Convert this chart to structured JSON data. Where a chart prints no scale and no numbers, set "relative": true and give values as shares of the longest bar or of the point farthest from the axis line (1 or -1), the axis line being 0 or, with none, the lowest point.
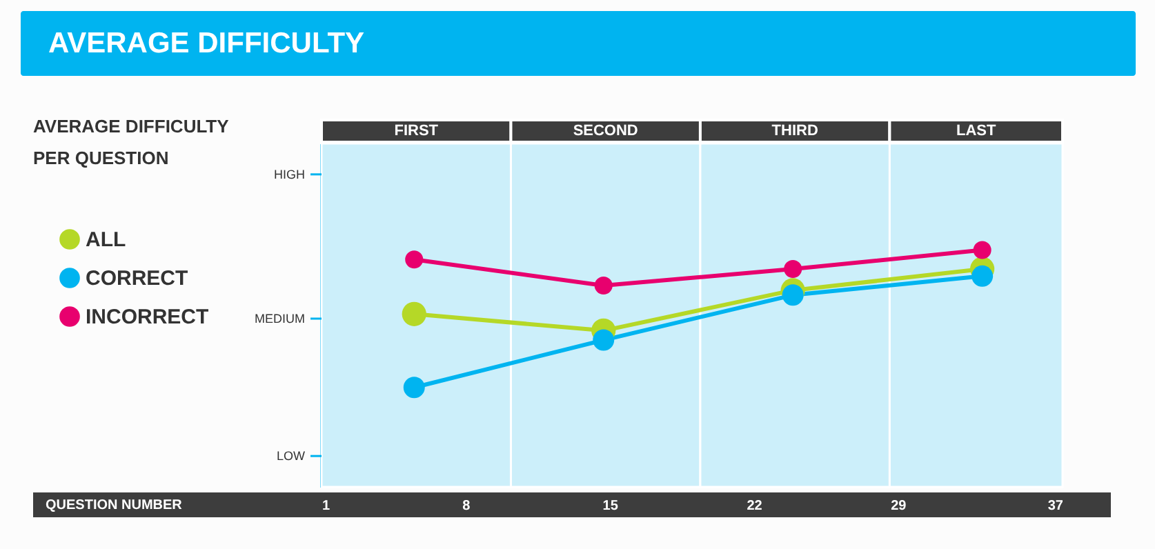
{
  "chart_data": {
    "type": "line",
    "title": "AVERAGE DIFFICULTY",
    "subtitle": "AVERAGE DIFFICULTY PER QUESTION",
    "x": [
      5.5,
      14.7,
      23.9,
      33.1
    ],
    "xlim": [
      1,
      37
    ],
    "xticks": [
      1,
      8,
      15,
      22,
      29,
      37
    ],
    "relative": true,
    "annotations": [
      "HIGH",
      "MEDIUM",
      "LOW",
      "QUESTION NUMBER"
    ],
    "series": [
      {
        "name": "ALL",
        "color": "#b5d827",
        "values": [
          0.73,
          0.66,
          0.83,
          0.92
        ]
      },
      {
        "name": "CORRECT",
        "color": "#00b4f0",
        "values": [
          0.42,
          0.62,
          0.81,
          0.89
        ]
      },
      {
        "name": "INCORRECT",
        "color": "#e8006e",
        "values": [
          0.96,
          0.85,
          0.92,
          1
        ]
      }
    ],
    "bands": [
      {
        "axis": "x",
        "from": 1,
        "to": 10.2,
        "label": "FIRST",
        "color": "#cceffa"
      },
      {
        "axis": "x",
        "from": 10.2,
        "to": 19.4,
        "label": "SECOND",
        "color": "#cceffa"
      },
      {
        "axis": "x",
        "from": 19.4,
        "to": 28.6,
        "label": "THIRD",
        "color": "#cceffa"
      },
      {
        "axis": "x",
        "from": 28.6,
        "to": 37,
        "label": "LAST",
        "color": "#cceffa"
      }
    ],
    "legend": "left",
    "marker": "circle",
    "grid": false
  }
}
